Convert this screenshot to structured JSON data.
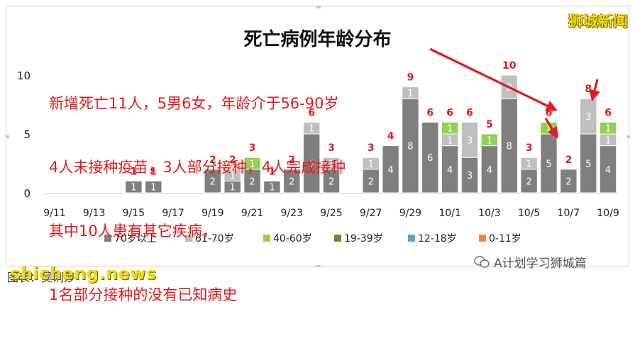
{
  "watermark_top": "狮城新闻",
  "watermark_bottom": "shicheng.news",
  "source_caption": "图表：吴俐莎",
  "wechat_account": "A计划学习狮城篇",
  "annotation_lines": [
    "新增死亡11人，5男6女，年龄介于56-90岁",
    "4人未接种疫苗，3人部分接种，4人完成接种",
    "其中10人患有其它疾病，",
    "1名部分接种的没有已知病史"
  ],
  "colors": {
    "70+": "#7f7f7f",
    "61-70": "#bfbfbf",
    "40-60": "#92d050",
    "19-39": "#6b8e23",
    "12-18": "#4bacc6",
    "0-11": "#e8894a",
    "annotation": "#e41a1c"
  },
  "chart_data": {
    "type": "bar",
    "stacked": true,
    "title": "死亡病例年龄分布",
    "categories": [
      "9/11",
      "9/12",
      "9/13",
      "9/14",
      "9/15",
      "9/16",
      "9/17",
      "9/18",
      "9/19",
      "9/20",
      "9/21",
      "9/22",
      "9/23",
      "9/24",
      "9/25",
      "9/26",
      "9/27",
      "9/28",
      "9/29",
      "9/30",
      "10/1",
      "10/2",
      "10/3",
      "10/4",
      "10/5",
      "10/6",
      "10/7",
      "10/8",
      "10/9"
    ],
    "tick_labels": [
      "9/11",
      "9/13",
      "9/15",
      "9/17",
      "9/19",
      "9/21",
      "9/23",
      "9/25",
      "9/27",
      "9/29",
      "10/1",
      "10/3",
      "10/5",
      "10/7",
      "10/9"
    ],
    "yticks": [
      0,
      5,
      10
    ],
    "ylim": [
      0,
      12
    ],
    "series": [
      {
        "name": "70岁以上",
        "color_key": "70+",
        "values": [
          0,
          0,
          0,
          0,
          1,
          1,
          0,
          0,
          2,
          1,
          2,
          1,
          2,
          5,
          2,
          0,
          2,
          4,
          8,
          6,
          4,
          3,
          4,
          8,
          2,
          5,
          2,
          5,
          4
        ]
      },
      {
        "name": "61-70岁",
        "color_key": "61-70",
        "values": [
          0,
          0,
          0,
          0,
          0,
          0,
          0,
          0,
          0,
          1,
          0,
          0,
          0,
          1,
          1,
          0,
          1,
          0,
          1,
          0,
          1,
          3,
          0,
          2,
          1,
          0,
          0,
          3,
          1
        ]
      },
      {
        "name": "40-60岁",
        "color_key": "40-60",
        "values": [
          0,
          0,
          0,
          0,
          0,
          0,
          0,
          0,
          0,
          0,
          1,
          0,
          0,
          0,
          0,
          0,
          0,
          0,
          0,
          0,
          1,
          0,
          1,
          0,
          0,
          1,
          0,
          0,
          1
        ]
      },
      {
        "name": "19-39岁",
        "color_key": "19-39",
        "values": [
          0,
          0,
          0,
          0,
          0,
          0,
          0,
          0,
          0,
          0,
          0,
          0,
          0,
          0,
          0,
          0,
          0,
          0,
          0,
          0,
          0,
          0,
          0,
          0,
          0,
          0,
          0,
          0,
          0
        ]
      },
      {
        "name": "12-18岁",
        "color_key": "12-18",
        "values": [
          0,
          0,
          0,
          0,
          0,
          0,
          0,
          0,
          0,
          0,
          0,
          0,
          0,
          0,
          0,
          0,
          0,
          0,
          0,
          0,
          0,
          0,
          0,
          0,
          0,
          0,
          0,
          0,
          0
        ]
      },
      {
        "name": "0-11岁",
        "color_key": "0-11",
        "values": [
          0,
          0,
          0,
          0,
          0,
          0,
          0,
          0,
          0,
          0,
          0,
          0,
          0,
          0,
          0,
          0,
          0,
          0,
          0,
          0,
          0,
          0,
          0,
          0,
          0,
          0,
          0,
          0,
          0
        ]
      }
    ],
    "totals": [
      0,
      0,
      0,
      0,
      1,
      1,
      0,
      0,
      2,
      2,
      3,
      1,
      2,
      6,
      3,
      0,
      3,
      4,
      9,
      6,
      6,
      6,
      5,
      10,
      3,
      6,
      2,
      8,
      6
    ],
    "legend_position": "bottom",
    "grid": false
  }
}
